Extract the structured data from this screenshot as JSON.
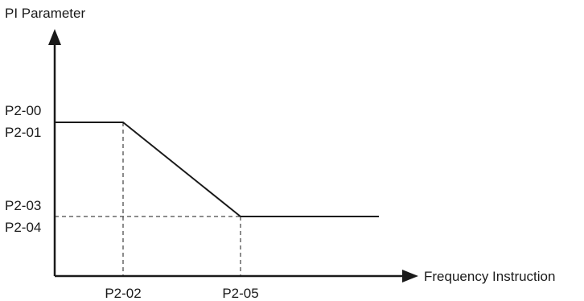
{
  "diagram": {
    "y_axis_title": "PI Parameter",
    "x_axis_title": "Frequency Instruction",
    "y_labels": {
      "upper_1": "P2-00",
      "upper_2": "P2-01",
      "lower_1": "P2-03",
      "lower_2": "P2-04"
    },
    "x_labels": {
      "first": "P2-02",
      "second": "P2-05"
    },
    "curve": {
      "description_points": [
        {
          "x": "0",
          "y": "P2-00 / P2-01"
        },
        {
          "x": "P2-02",
          "y": "P2-00 / P2-01"
        },
        {
          "x": "P2-05",
          "y": "P2-03 / P2-04"
        }
      ]
    },
    "colors": {
      "line": "#1a1a1a",
      "text": "#1a1a1a"
    }
  }
}
